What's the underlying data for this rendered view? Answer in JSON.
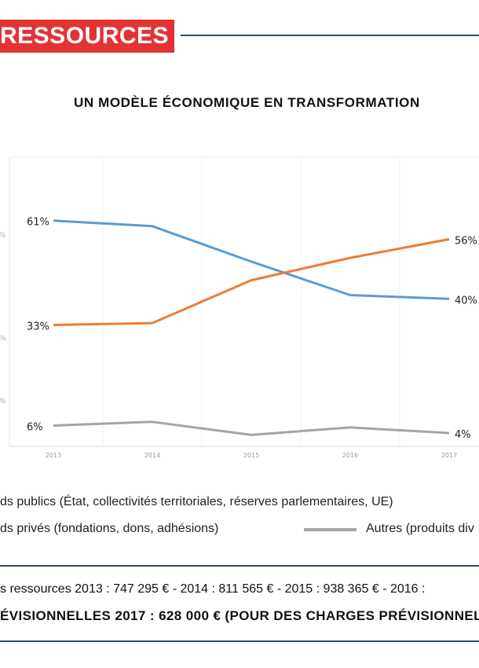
{
  "header": {
    "section_title": "RESSOURCES",
    "accent_color": "#e33334",
    "rule_color": "#2f4a6e"
  },
  "chart_data": {
    "type": "line",
    "title": "UN MODÈLE ÉCONOMIQUE EN TRANSFORMATION",
    "categories": [
      "2013",
      "2014",
      "2015",
      "2016",
      "2017"
    ],
    "ylim": [
      0,
      70
    ],
    "grid": true,
    "y_tick_fragments": [
      "%",
      "%",
      "%"
    ],
    "series": [
      {
        "color": "#5b9bd5",
        "values": [
          61,
          59.5,
          50,
          41,
          40
        ],
        "label_first": "61%",
        "label_last": "40%"
      },
      {
        "color": "#ed7d31",
        "values": [
          33,
          33.5,
          45,
          51,
          56
        ],
        "label_first": "33%",
        "label_last": "56%"
      },
      {
        "color": "#a5a5a5",
        "values": [
          6,
          7,
          3.5,
          5.5,
          4
        ],
        "label_first": "6%",
        "label_last": "4%"
      }
    ]
  },
  "legend": {
    "public": "ds publics (État, collectivités territoriales, réserves parlementaires, UE)",
    "private": "ds privés (fondations, dons, adhésions)",
    "other": "Autres (produits div"
  },
  "footer": {
    "line1": "s ressources 2013 : 747 295 € - 2014 : 811 565 € - 2015 : 938 365 € - 2016 :",
    "line2": "ÉVISIONNELLES 2017 : 628 000 € (POUR DES CHARGES PRÉVISIONNELL"
  }
}
